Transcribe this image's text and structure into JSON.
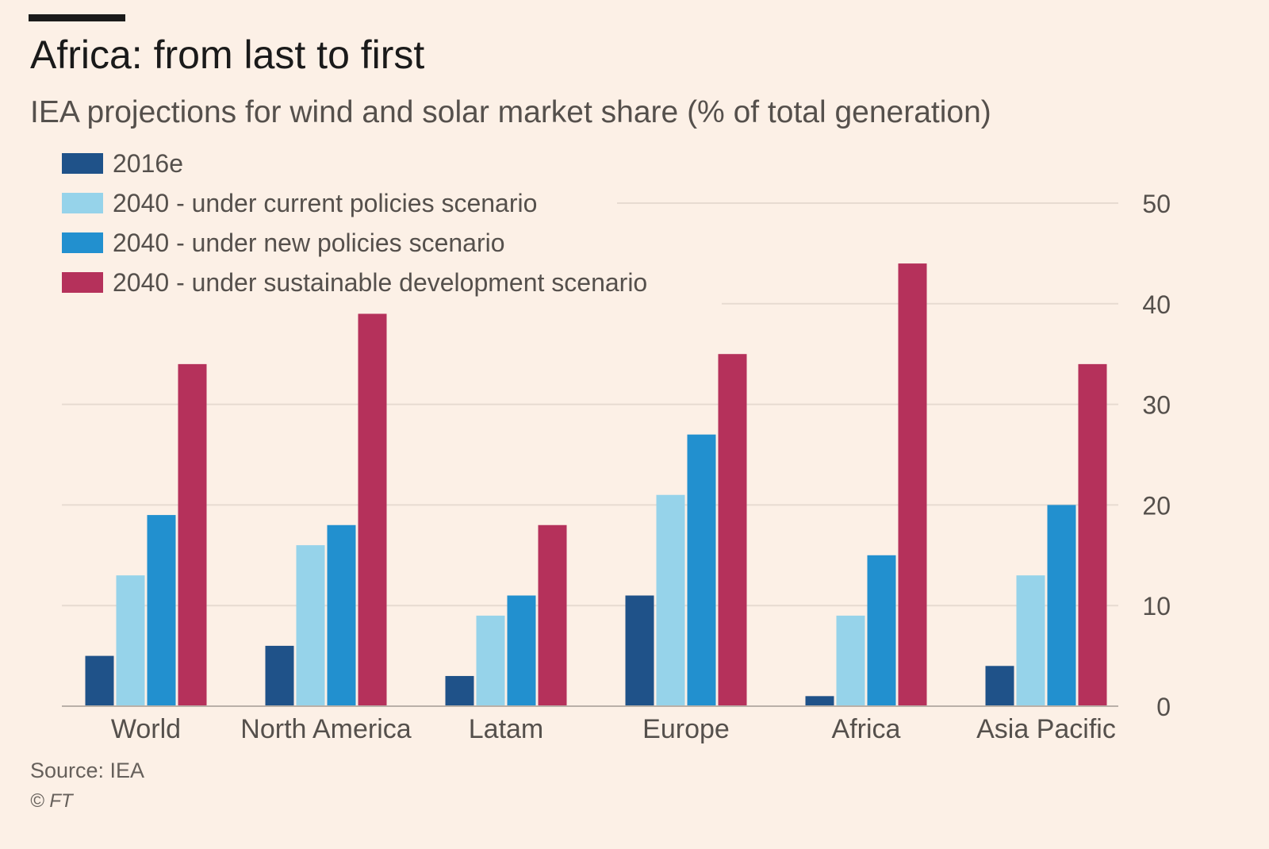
{
  "header": {
    "title": "Africa: from last to first",
    "subtitle": "IEA projections for wind and solar market share (% of total generation)"
  },
  "footer": {
    "source": "Source: IEA",
    "copyright": "© FT"
  },
  "chart_data": {
    "type": "bar",
    "title": "Africa: from last to first",
    "subtitle": "IEA projections for wind and solar market share (% of total generation)",
    "xlabel": "",
    "ylabel": "",
    "ylim": [
      0,
      50
    ],
    "yticks": [
      0,
      10,
      20,
      30,
      40,
      50
    ],
    "grid": true,
    "y_axis_side": "right",
    "legend_position": "top-left",
    "categories": [
      "World",
      "North America",
      "Latam",
      "Europe",
      "Africa",
      "Asia Pacific"
    ],
    "series": [
      {
        "name": "2016e",
        "color": "#1f5289",
        "values": [
          5,
          6,
          3,
          11,
          1,
          4
        ]
      },
      {
        "name": "2040 - under current policies scenario",
        "color": "#96d3ea",
        "values": [
          13,
          16,
          9,
          21,
          9,
          13
        ]
      },
      {
        "name": "2040 - under new policies scenario",
        "color": "#2290cf",
        "values": [
          19,
          18,
          11,
          27,
          15,
          20
        ]
      },
      {
        "name": "2040 - under sustainable development scenario",
        "color": "#b5315b",
        "values": [
          34,
          39,
          18,
          35,
          44,
          34
        ]
      }
    ]
  }
}
